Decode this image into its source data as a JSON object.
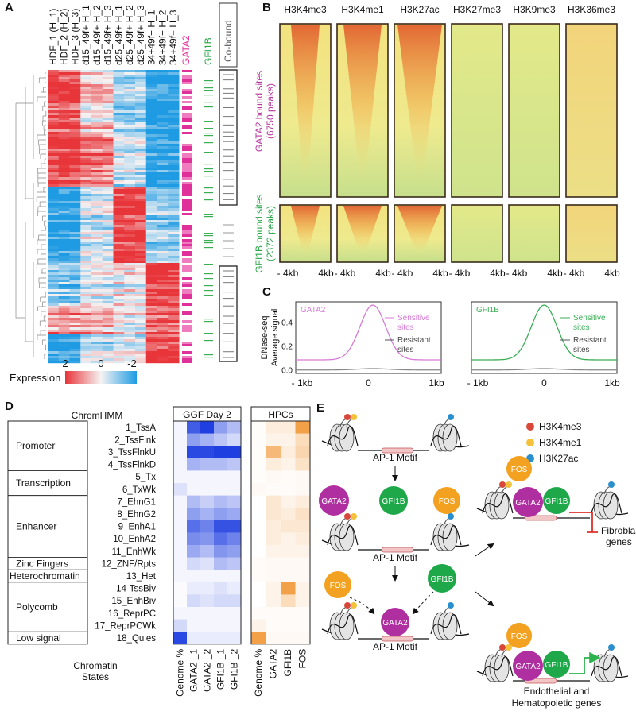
{
  "panels": {
    "a": "A",
    "b": "B",
    "c": "C",
    "d": "D",
    "e": "E"
  },
  "expression_heatmap": {
    "columns": [
      "HDF_1 (H_1)",
      "HDF_2 (H_2)",
      "HDF_3 (H_3)",
      "d15_49f+ H_1",
      "d15_49f+ H_2",
      "d15_49f+ H_3",
      "d25_49f+ H_1",
      "d25_49f+ H_2",
      "d25_49f+ H_3",
      "34+49f+ H_1",
      "34+49f+ H_2",
      "34+49f+ H_3"
    ],
    "tracks": [
      "GATA2",
      "GFI1B",
      "Co-bound"
    ],
    "legend": {
      "title": "Expression",
      "ticks": [
        "2",
        "0",
        "-2"
      ]
    }
  },
  "histone_heatmaps": {
    "marks": [
      "H3K4me3",
      "H3K4me1",
      "H3K27ac",
      "H3K27me3",
      "H3K9me3",
      "H3K36me3"
    ],
    "row_labels": [
      {
        "name": "GATA2 bound sites",
        "peaks": "(6750 peaks)"
      },
      {
        "name": "GFI1B bound sites",
        "peaks": "(2372 peaks)"
      }
    ],
    "x_labels": [
      "- 4kb",
      "4kb"
    ]
  },
  "dnase_profiles": {
    "y_label": [
      "DNase-seq",
      "Average signal"
    ],
    "yticks": [
      "0.0",
      "0.2",
      "0.4"
    ],
    "xticks": [
      "- 1kb",
      "0",
      "1kb"
    ],
    "plots": [
      {
        "name": "GATA2",
        "sensitive": "Sensitive sites",
        "resistant": "Resistant sites"
      },
      {
        "name": "GFI1B",
        "sensitive": "Sensitive sites",
        "resistant": "Resistant sites"
      }
    ]
  },
  "chromhmm": {
    "header": "ChromHMM",
    "footer": [
      "Chromatin",
      "States"
    ],
    "groups": [
      "Promoter",
      "Transcription",
      "Enhancer",
      "Zinc Fingers",
      "Heterochromatin",
      "Polycomb",
      "Low signal"
    ],
    "states": [
      "1_TssA",
      "2_TssFlnk",
      "3_TssFlnkU",
      "4_TssFlnkD",
      "5_Tx",
      "6_TxWk",
      "7_EhnG1",
      "8_EhnG2",
      "9_EnhA1",
      "10_EnhA2",
      "11_EnhWk",
      "12_ZNF/Rpts",
      "13_Het",
      "14-TssBiv",
      "15_EnhBiv",
      "16_ReprPC",
      "17_ReprPCWk",
      "18_Quies"
    ],
    "ggf": {
      "title": "GGF Day 2",
      "columns": [
        "Genome %",
        "GATA2 _1",
        "GATA2 _2",
        "GFI1B _1",
        "GFI1B _2"
      ]
    },
    "hpc": {
      "title": "HPCs",
      "columns": [
        "Genome %",
        "GATA2",
        "GFI1B",
        "FOS"
      ]
    }
  },
  "model": {
    "legend": [
      "H3K4me3",
      "H3K4me1",
      "H3K27ac"
    ],
    "motif": "AP-1 Motif",
    "factors": [
      "GATA2",
      "GFI1B",
      "FOS"
    ],
    "outcomes": [
      "Fibroblast",
      "genes",
      "Endothelial and",
      "Hematopoietic genes"
    ]
  }
}
